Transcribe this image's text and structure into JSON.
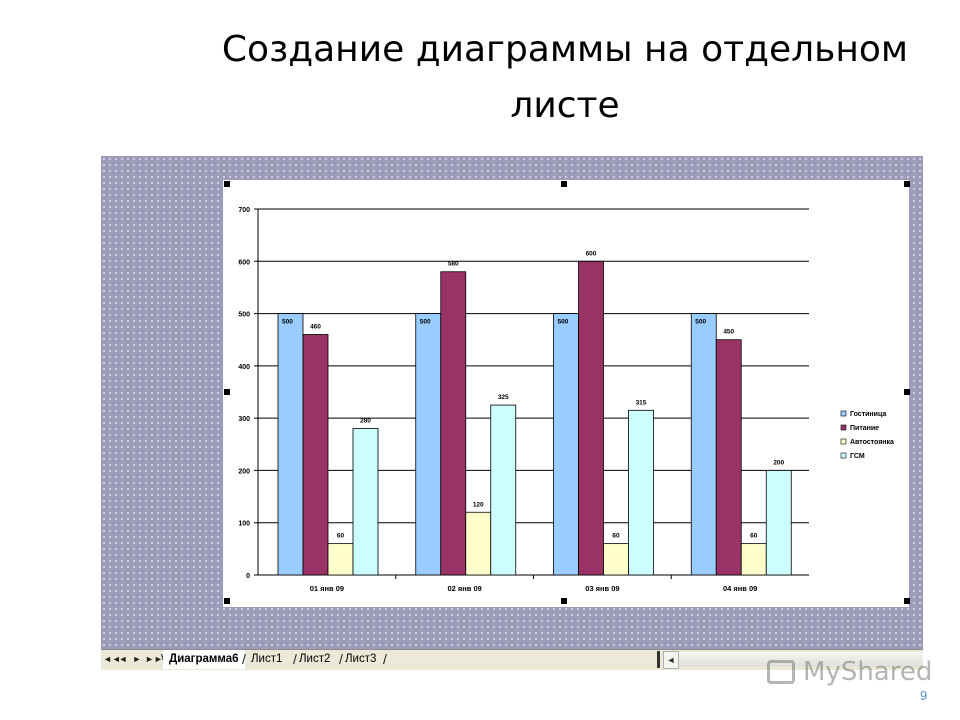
{
  "slide": {
    "title_line1": "Создание диаграммы на отдельном",
    "title_line2": "листе",
    "page_number": "9"
  },
  "chart_data": {
    "type": "bar",
    "categories": [
      "01 янв 09",
      "02 янв 09",
      "03 янв 09",
      "04 янв 09"
    ],
    "series": [
      {
        "name": "Гостиница",
        "values": [
          500,
          500,
          500,
          500
        ],
        "color": "#99ccff"
      },
      {
        "name": "Питание",
        "values": [
          460,
          580,
          600,
          450
        ],
        "color": "#993366"
      },
      {
        "name": "Автостоянка",
        "values": [
          60,
          120,
          60,
          60
        ],
        "color": "#ffffcc"
      },
      {
        "name": "ГСМ",
        "values": [
          280,
          325,
          315,
          200
        ],
        "color": "#ccffff"
      }
    ],
    "data_labels": [
      [
        "500",
        "500",
        "500",
        "500"
      ],
      [
        "460",
        "580",
        "600",
        "450"
      ],
      [
        "60",
        "120",
        "60",
        "60"
      ],
      [
        "280",
        "325",
        "315",
        "200"
      ]
    ],
    "y_ticks": [
      "0",
      "100",
      "200",
      "300",
      "400",
      "500",
      "600",
      "700"
    ],
    "ylim": [
      0,
      700
    ],
    "grid": true,
    "legend": "right",
    "title": "",
    "xlabel": "",
    "ylabel": ""
  },
  "sheet_tabs": {
    "nav": [
      "◄◄",
      "◄",
      "►",
      "►►"
    ],
    "tabs": [
      "Диаграмма6",
      "Лист1",
      "Лист2",
      "Лист3"
    ],
    "active_index": 0
  },
  "watermark": {
    "text": "MyShared",
    "icon": "presentation-board-icon"
  }
}
